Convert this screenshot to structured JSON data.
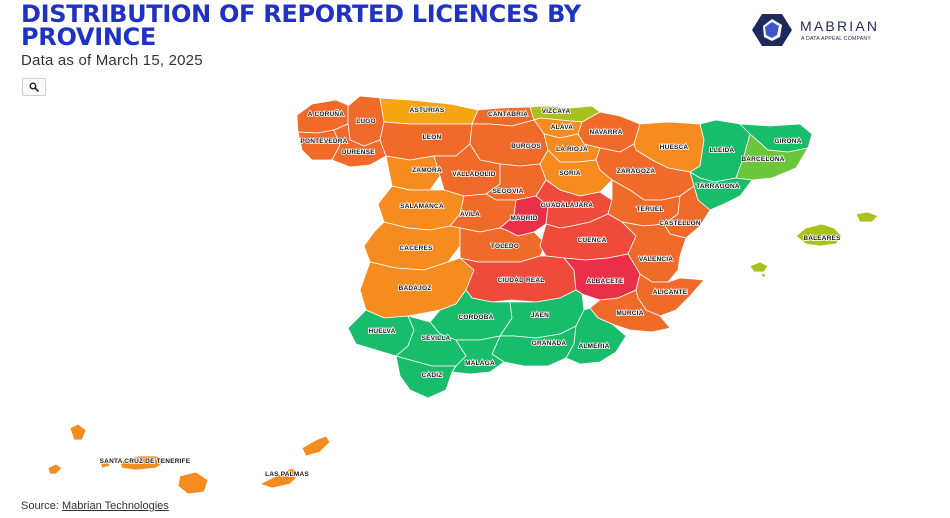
{
  "header": {
    "title": "DISTRIBUTION OF REPORTED LICENCES BY PROVINCE",
    "subtitle": "Data as of March 15, 2025"
  },
  "brand": {
    "name": "MABRIAN",
    "tagline": "A DATA APPEAL COMPANY",
    "color": "#1e2a5e"
  },
  "toolbar": {
    "zoom_icon": "search-icon"
  },
  "map": {
    "colors": {
      "green": "#18bd6b",
      "light_green": "#6cc63c",
      "olive": "#a8c11c",
      "amber": "#f5a512",
      "orange": "#f68b1f",
      "dark_orange": "#f06a2a",
      "red_orange": "#ee4b3a",
      "red": "#ea2f48",
      "border": "#ffffff"
    },
    "provinces": [
      {
        "name": "A CORUÑA",
        "color": "dark_orange"
      },
      {
        "name": "LUGO",
        "color": "dark_orange"
      },
      {
        "name": "PONTEVEDRA",
        "color": "dark_orange"
      },
      {
        "name": "OURENSE",
        "color": "dark_orange"
      },
      {
        "name": "ASTURIAS",
        "color": "amber"
      },
      {
        "name": "CANTABRIA",
        "color": "dark_orange"
      },
      {
        "name": "VIZCAYA",
        "color": "olive"
      },
      {
        "name": "ALAVA",
        "color": "orange"
      },
      {
        "name": "NAVARRA",
        "color": "dark_orange"
      },
      {
        "name": "HUESCA",
        "color": "orange"
      },
      {
        "name": "LLEIDA",
        "color": "green"
      },
      {
        "name": "GIRONA",
        "color": "green"
      },
      {
        "name": "BARCELONA",
        "color": "light_green"
      },
      {
        "name": "TARRAGONA",
        "color": "green"
      },
      {
        "name": "LEON",
        "color": "dark_orange"
      },
      {
        "name": "BURGOS",
        "color": "dark_orange"
      },
      {
        "name": "LA RIOJA",
        "color": "orange"
      },
      {
        "name": "ZARAGOZA",
        "color": "dark_orange"
      },
      {
        "name": "ZAMORA",
        "color": "orange"
      },
      {
        "name": "VALLADOLID",
        "color": "dark_orange"
      },
      {
        "name": "SORIA",
        "color": "orange"
      },
      {
        "name": "SEGOVIA",
        "color": "dark_orange"
      },
      {
        "name": "SALAMANCA",
        "color": "orange"
      },
      {
        "name": "AVILA",
        "color": "dark_orange"
      },
      {
        "name": "MADRID",
        "color": "red"
      },
      {
        "name": "GUADALAJARA",
        "color": "red_orange"
      },
      {
        "name": "TERUEL",
        "color": "dark_orange"
      },
      {
        "name": "CASTELLON",
        "color": "dark_orange"
      },
      {
        "name": "CACERES",
        "color": "orange"
      },
      {
        "name": "TOLEDO",
        "color": "dark_orange"
      },
      {
        "name": "CUENCA",
        "color": "red_orange"
      },
      {
        "name": "VALENCIA",
        "color": "dark_orange"
      },
      {
        "name": "BADAJOZ",
        "color": "orange"
      },
      {
        "name": "CIUDAD REAL",
        "color": "red_orange"
      },
      {
        "name": "ALBACETE",
        "color": "red"
      },
      {
        "name": "ALICANTE",
        "color": "dark_orange"
      },
      {
        "name": "MURCIA",
        "color": "dark_orange"
      },
      {
        "name": "HUELVA",
        "color": "green"
      },
      {
        "name": "CORDOBA",
        "color": "green"
      },
      {
        "name": "JAEN",
        "color": "green"
      },
      {
        "name": "SEVILLA",
        "color": "green"
      },
      {
        "name": "GRANADA",
        "color": "green"
      },
      {
        "name": "ALMERIA",
        "color": "green"
      },
      {
        "name": "MALAGA",
        "color": "green"
      },
      {
        "name": "CADIZ",
        "color": "green"
      },
      {
        "name": "BALEARES",
        "color": "olive"
      },
      {
        "name": "SANTA CRUZ DE TENERIFE",
        "color": "orange"
      },
      {
        "name": "LAS PALMAS",
        "color": "orange"
      }
    ]
  },
  "footer": {
    "source_prefix": "Source:",
    "source_link": "Mabrian Technologies"
  }
}
